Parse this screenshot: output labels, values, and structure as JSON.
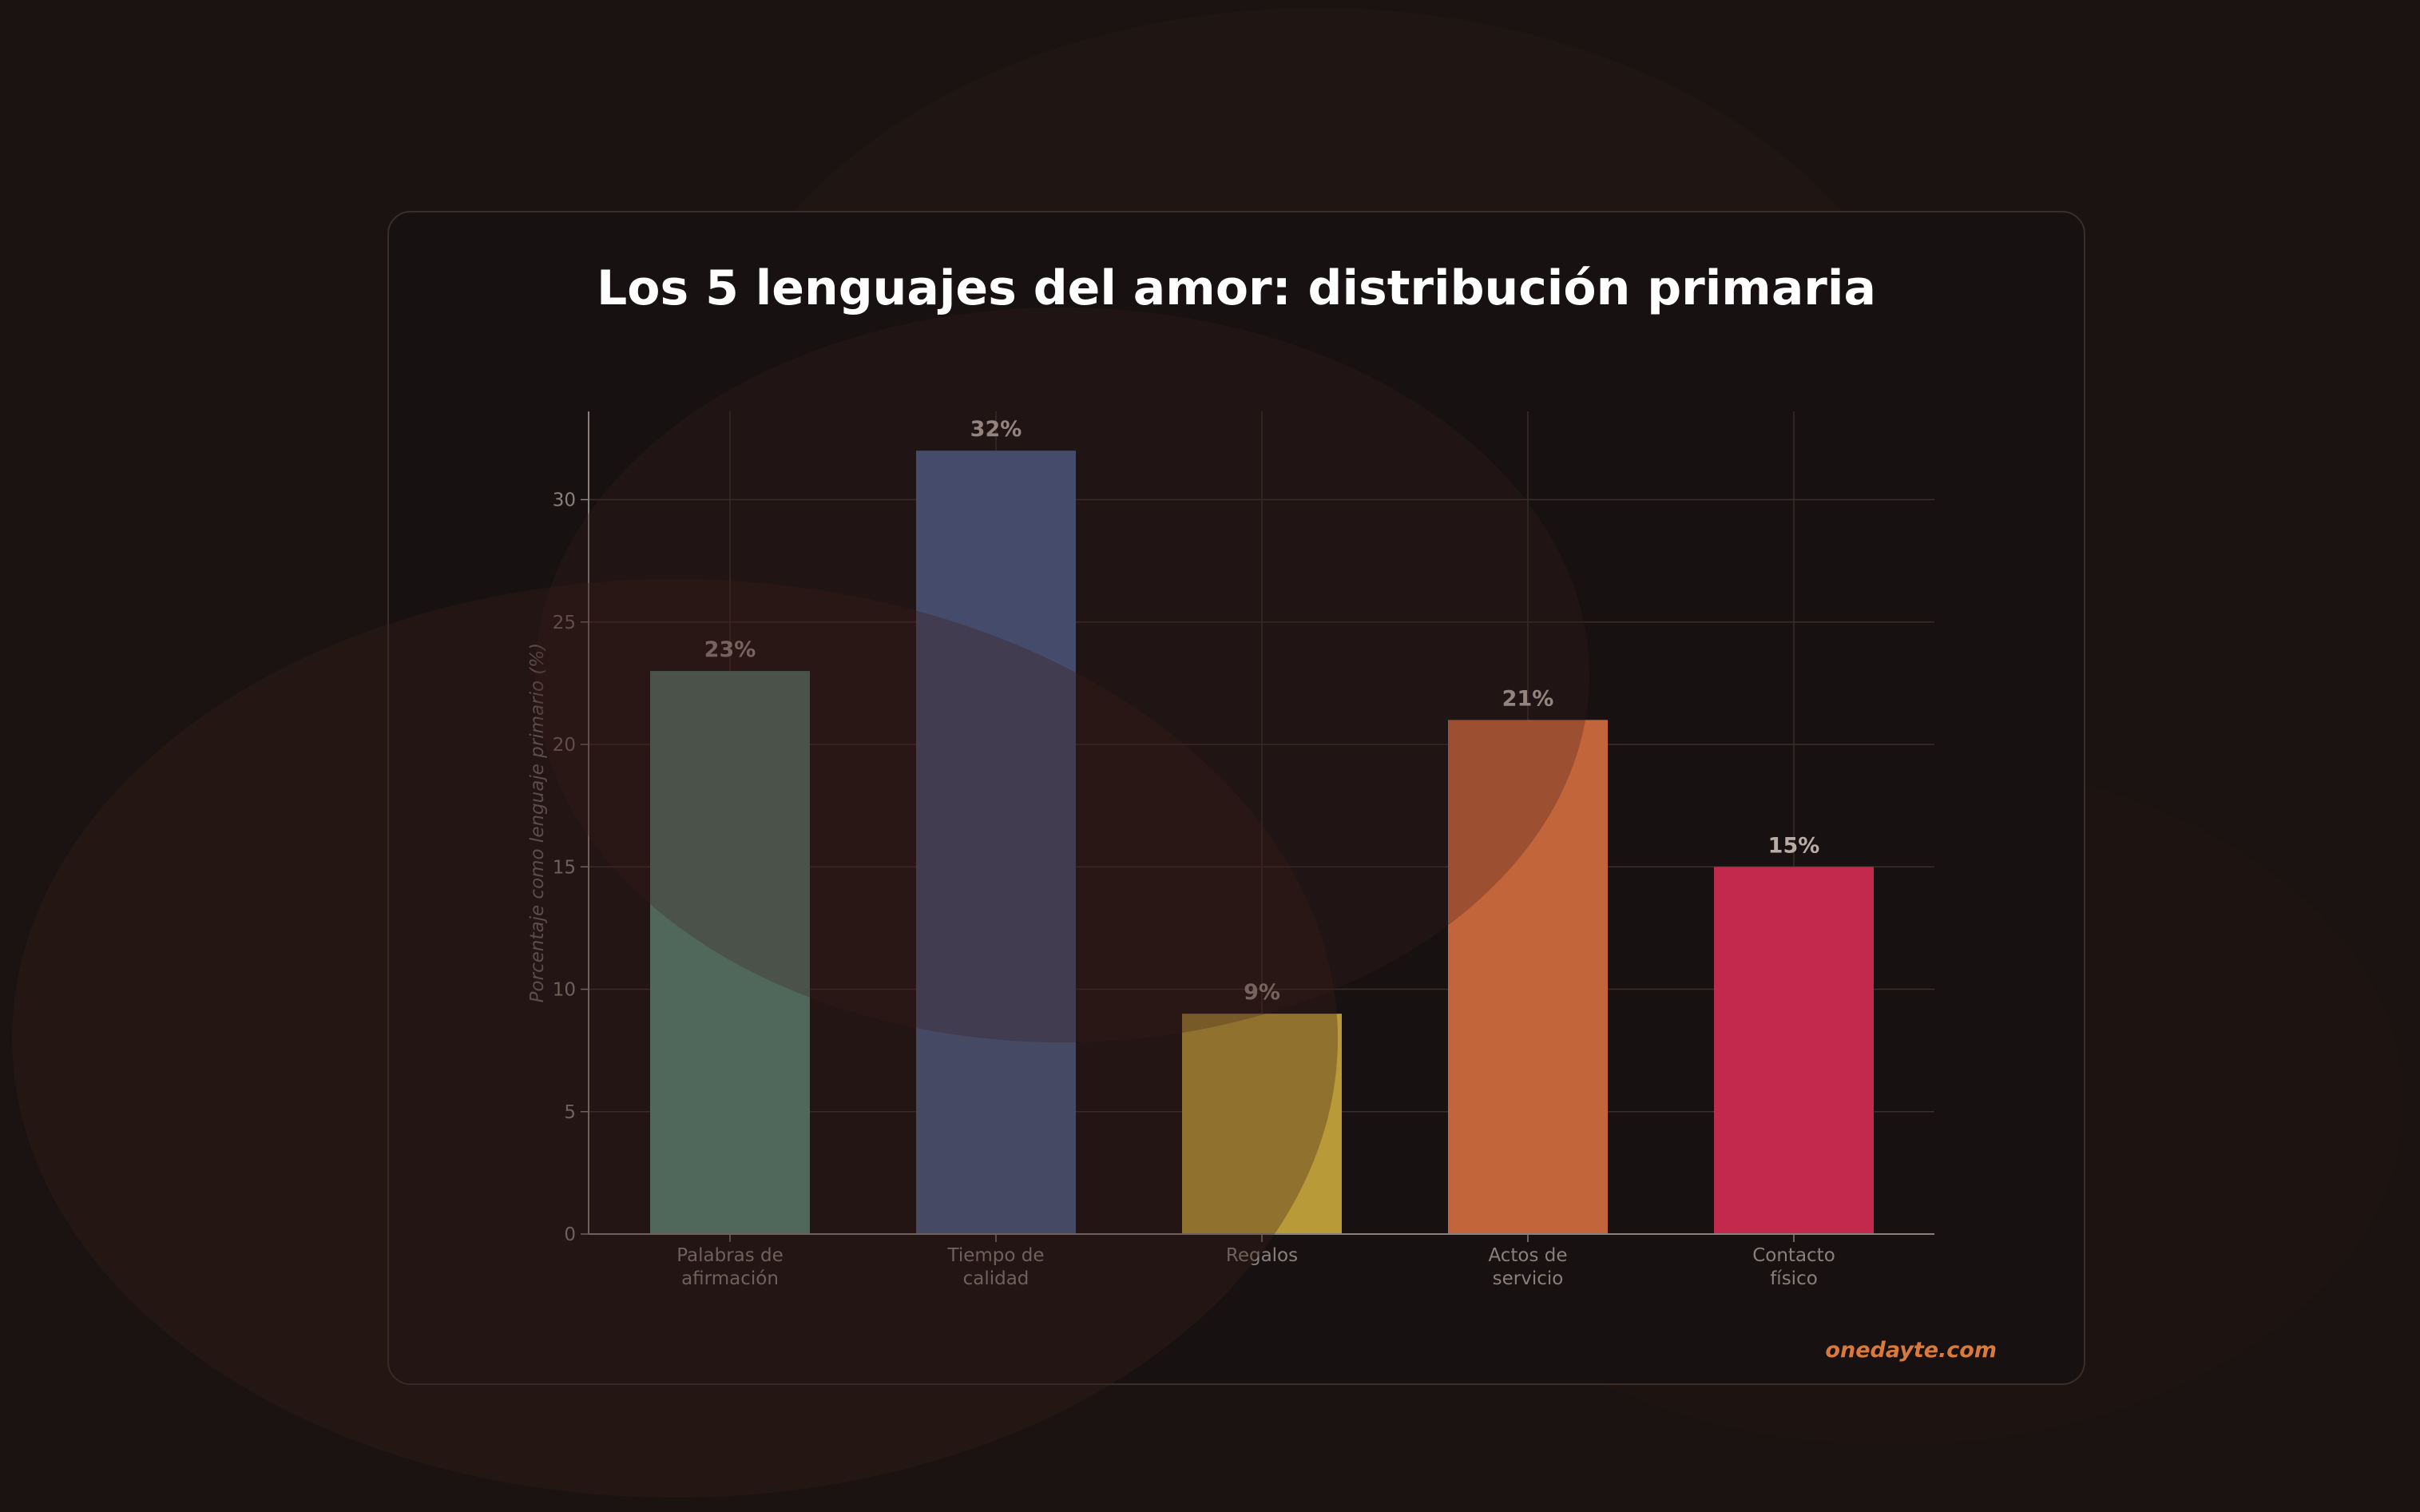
{
  "title": "Los 5 lenguajes del amor: distribución primaria",
  "watermark": "onedayte.com",
  "colors": {
    "background": "#1a1311",
    "panel_border": "#3a2e2a",
    "title": "#ffffff",
    "watermark": "#d97a3a",
    "bar_colors": [
      "#5a8a7c",
      "#4a5e88",
      "#b89a38",
      "#c2653a",
      "#c2294c"
    ]
  },
  "chart_data": {
    "type": "bar",
    "title": "Los 5 lenguajes del amor: distribución primaria",
    "ylabel": "Porcentaje como lenguaje primario (%)",
    "xlabel": "",
    "categories": [
      [
        "Palabras de",
        "afirmación"
      ],
      [
        "Tiempo de",
        "calidad"
      ],
      [
        "Regalos"
      ],
      [
        "Actos de",
        "servicio"
      ],
      [
        "Contacto",
        "físico"
      ]
    ],
    "values": [
      23,
      32,
      9,
      21,
      15
    ],
    "value_labels": [
      "23%",
      "32%",
      "9%",
      "21%",
      "15%"
    ],
    "ylim": [
      0,
      33.6
    ],
    "yticks": [
      0,
      5,
      10,
      15,
      20,
      25,
      30
    ],
    "grid": true
  }
}
